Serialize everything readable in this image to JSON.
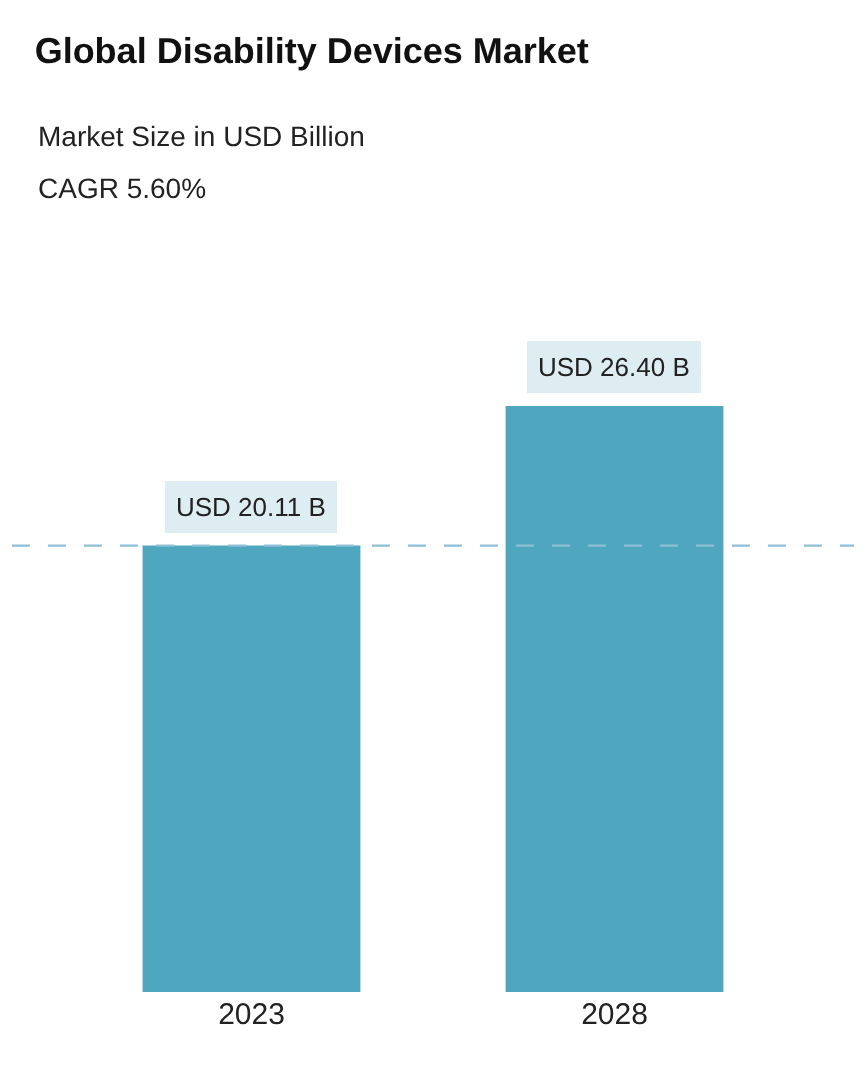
{
  "chart_data": {
    "type": "bar",
    "title": "Global Disability Devices Market",
    "subtitle": "Market Size in USD Billion",
    "annotations": [
      "CAGR 5.60%"
    ],
    "categories": [
      "2023",
      "2028"
    ],
    "values": [
      20.11,
      26.4
    ],
    "color": "#4ea6bf",
    "value_labels": [
      "USD 20.11 B",
      "USD 26.40 B"
    ],
    "tick_labels": "x",
    "ref_lines": [
      {
        "axis": "y",
        "value": 20.11,
        "color": "#8fbfd6",
        "line_style": "dashed"
      }
    ]
  }
}
